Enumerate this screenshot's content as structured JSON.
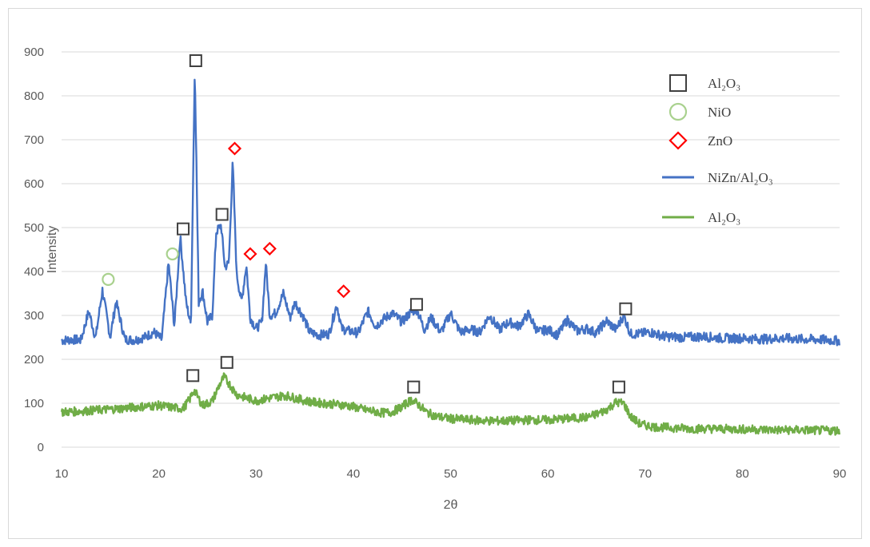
{
  "chart_data": {
    "type": "line",
    "xlabel": "2θ",
    "ylabel": "Intensity",
    "xlim": [
      10,
      90
    ],
    "ylim": [
      0,
      900
    ],
    "x_ticks": [
      10,
      20,
      30,
      40,
      50,
      60,
      70,
      80,
      90
    ],
    "y_ticks": [
      0,
      100,
      200,
      300,
      400,
      500,
      600,
      700,
      800,
      900
    ],
    "grid": "horizontal",
    "legend_position": "top-right",
    "series": [
      {
        "name": "NiZn/Al2O3",
        "color": "#4472c4",
        "x": [
          10,
          11,
          12,
          12.8,
          13.5,
          14.2,
          15,
          15.6,
          16.5,
          17.5,
          18.5,
          19.5,
          20.3,
          21,
          21.6,
          22.2,
          22.8,
          23.3,
          23.7,
          24.1,
          24.5,
          25,
          25.5,
          25.9,
          26.4,
          26.8,
          27.2,
          27.6,
          28,
          28.5,
          29,
          29.4,
          30,
          30.6,
          31,
          31.4,
          32,
          32.8,
          33.5,
          34,
          34.8,
          35.5,
          36.5,
          37.5,
          38.3,
          38.8,
          39.5,
          40.5,
          41.5,
          42.3,
          43,
          44,
          45,
          45.8,
          46.5,
          47.3,
          48,
          49,
          50,
          51,
          52,
          53,
          54,
          55,
          56,
          57,
          58,
          59,
          60,
          61,
          62,
          63,
          64,
          65,
          66,
          67,
          67.8,
          68.5,
          69.5,
          70.5,
          72,
          74,
          76,
          78,
          80,
          82,
          84,
          86,
          88,
          90
        ],
        "y": [
          243,
          245,
          244,
          310,
          248,
          358,
          250,
          332,
          246,
          244,
          250,
          262,
          245,
          420,
          275,
          480,
          330,
          278,
          870,
          330,
          355,
          285,
          300,
          490,
          505,
          410,
          420,
          650,
          395,
          330,
          415,
          295,
          270,
          285,
          420,
          300,
          305,
          350,
          295,
          330,
          300,
          262,
          255,
          258,
          325,
          270,
          265,
          260,
          310,
          275,
          290,
          305,
          285,
          305,
          315,
          268,
          295,
          262,
          305,
          262,
          268,
          262,
          300,
          268,
          285,
          275,
          303,
          262,
          268,
          255,
          290,
          265,
          270,
          260,
          288,
          268,
          300,
          258,
          258,
          262,
          252,
          250,
          252,
          248,
          248,
          246,
          248,
          246,
          245,
          242
        ]
      },
      {
        "name": "Al2O3",
        "color": "#70ad47",
        "x": [
          10,
          12,
          14,
          16,
          18,
          20,
          21.5,
          22.5,
          23.2,
          23.6,
          24.5,
          25.5,
          26.2,
          26.7,
          27.2,
          28,
          29,
          30,
          31,
          32,
          33,
          34,
          35,
          36,
          37,
          38,
          39,
          40,
          41,
          42,
          43,
          44,
          45,
          46,
          46.8,
          47.5,
          48.5,
          50,
          52,
          54,
          56,
          58,
          60,
          62,
          64,
          65,
          66,
          67,
          67.8,
          68.5,
          69.5,
          71,
          73,
          75,
          77,
          80,
          82,
          84,
          86,
          88,
          90
        ],
        "y": [
          80,
          82,
          85,
          88,
          92,
          95,
          90,
          88,
          110,
          130,
          95,
          105,
          140,
          160,
          145,
          120,
          112,
          106,
          110,
          114,
          118,
          112,
          106,
          102,
          100,
          98,
          96,
          92,
          86,
          82,
          78,
          80,
          92,
          108,
          95,
          80,
          70,
          65,
          62,
          60,
          60,
          62,
          62,
          65,
          68,
          75,
          85,
          102,
          100,
          70,
          52,
          46,
          44,
          42,
          42,
          41,
          40,
          39,
          39,
          38,
          38
        ]
      }
    ],
    "markers": [
      {
        "type": "square",
        "label": "Al2O3",
        "color": "#404040",
        "x": 23.8,
        "y": 880
      },
      {
        "type": "square",
        "label": "Al2O3",
        "color": "#404040",
        "x": 22.5,
        "y": 497
      },
      {
        "type": "square",
        "label": "Al2O3",
        "color": "#404040",
        "x": 26.5,
        "y": 530
      },
      {
        "type": "square",
        "label": "Al2O3",
        "color": "#404040",
        "x": 46.5,
        "y": 325
      },
      {
        "type": "square",
        "label": "Al2O3",
        "color": "#404040",
        "x": 68,
        "y": 315
      },
      {
        "type": "square",
        "label": "Al2O3",
        "color": "#404040",
        "x": 23.5,
        "y": 163
      },
      {
        "type": "square",
        "label": "Al2O3",
        "color": "#404040",
        "x": 27,
        "y": 193
      },
      {
        "type": "square",
        "label": "Al2O3",
        "color": "#404040",
        "x": 46.2,
        "y": 137
      },
      {
        "type": "square",
        "label": "Al2O3",
        "color": "#404040",
        "x": 67.3,
        "y": 137
      },
      {
        "type": "circle",
        "label": "NiO",
        "color": "#a9d18e",
        "x": 14.8,
        "y": 382
      },
      {
        "type": "circle",
        "label": "NiO",
        "color": "#a9d18e",
        "x": 21.4,
        "y": 440
      },
      {
        "type": "diamond",
        "label": "ZnO",
        "color": "#ff0000",
        "x": 27.8,
        "y": 680
      },
      {
        "type": "diamond",
        "label": "ZnO",
        "color": "#ff0000",
        "x": 29.4,
        "y": 440
      },
      {
        "type": "diamond",
        "label": "ZnO",
        "color": "#ff0000",
        "x": 31.4,
        "y": 452
      },
      {
        "type": "diamond",
        "label": "ZnO",
        "color": "#ff0000",
        "x": 39,
        "y": 355
      }
    ],
    "legend": [
      {
        "label": "Al₂O₃",
        "symbol": "square",
        "color": "#404040"
      },
      {
        "label": "NiO",
        "symbol": "circle",
        "color": "#a9d18e"
      },
      {
        "label": "ZnO",
        "symbol": "diamond",
        "color": "#ff0000"
      },
      {
        "label": "NiZn/Al₂O₃",
        "symbol": "line",
        "color": "#4472c4"
      },
      {
        "label": "Al₂O₃",
        "symbol": "line",
        "color": "#70ad47"
      }
    ]
  }
}
